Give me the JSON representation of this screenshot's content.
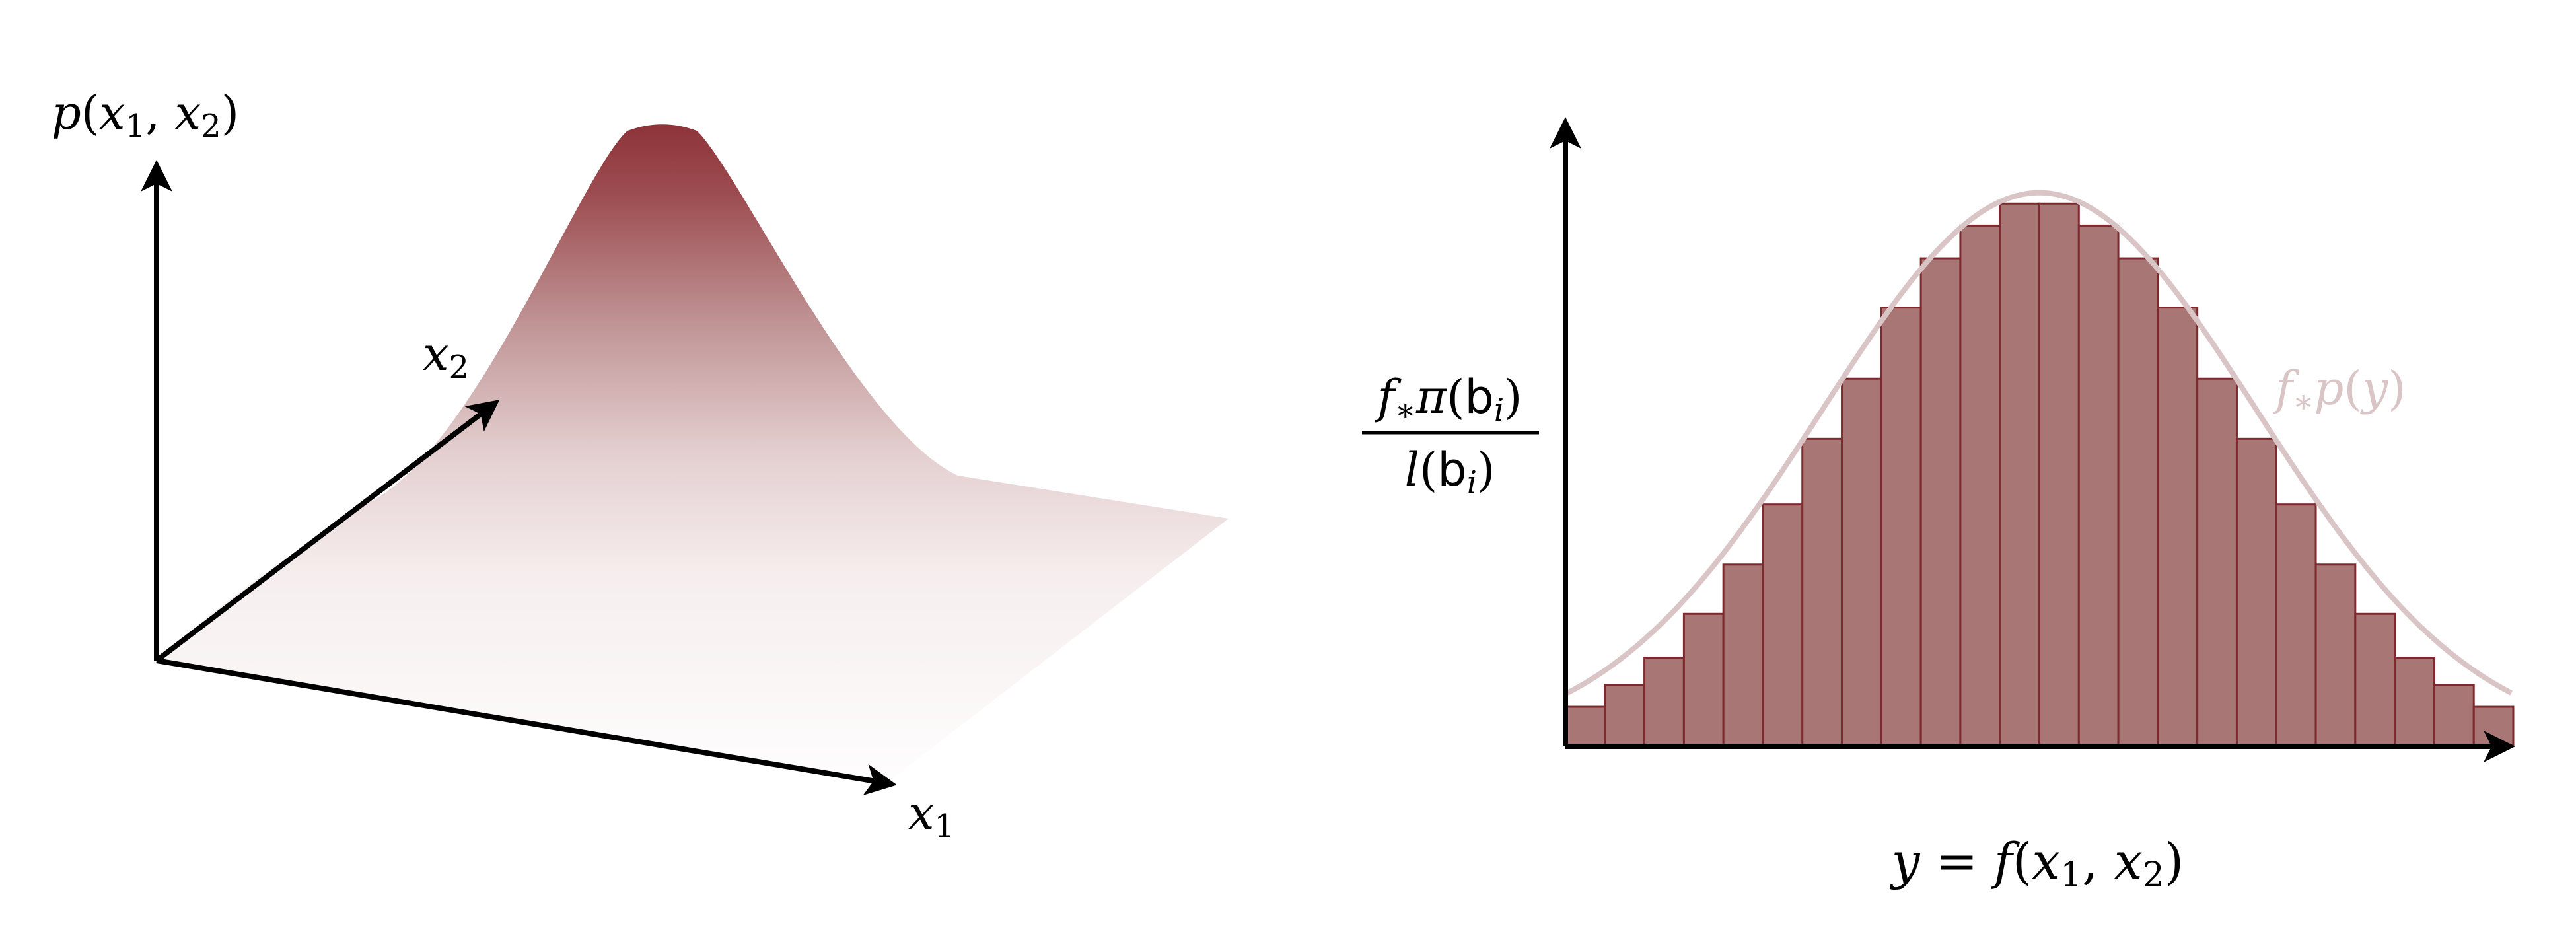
{
  "left_panel": {
    "vertical_axis_label": {
      "f": "p",
      "open": "(",
      "v1": "x",
      "s1": "1",
      "comma": ", ",
      "v2": "x",
      "s2": "2",
      "close": ")"
    },
    "depth_axis_label": {
      "v": "x",
      "s": "2"
    },
    "horizontal_axis_label": {
      "v": "x",
      "s": "1"
    }
  },
  "right_panel": {
    "y_axis_label": {
      "numerator": {
        "f": "f",
        "star": "∗",
        "pi": "π",
        "open": "(",
        "b": "b",
        "i": "i",
        "close": ")"
      },
      "denominator": {
        "l": "l",
        "open": "(",
        "b": "b",
        "i": "i",
        "close": ")"
      }
    },
    "curve_label": {
      "f": "f",
      "star": "∗",
      "p": "p",
      "open": "(",
      "y": "y",
      "close": ")"
    },
    "x_axis_label": {
      "y": "y",
      "eq": " = ",
      "f": "f",
      "open": "(",
      "v1": "x",
      "s1": "1",
      "comma": ", ",
      "v2": "x",
      "s2": "2",
      "close": ")"
    }
  },
  "chart_data": {
    "type": "bar",
    "bar_values": [
      0.07,
      0.11,
      0.16,
      0.24,
      0.33,
      0.44,
      0.56,
      0.67,
      0.8,
      0.89,
      0.95,
      0.99,
      0.99,
      0.95,
      0.89,
      0.8,
      0.67,
      0.56,
      0.44,
      0.33,
      0.24,
      0.16,
      0.11,
      0.07
    ],
    "curve": "gaussian",
    "colors": {
      "bar_fill": "#a97676",
      "bar_stroke": "#7c2a2e",
      "curve": "#d9c4c6",
      "surface_peak": "#963f44"
    }
  }
}
